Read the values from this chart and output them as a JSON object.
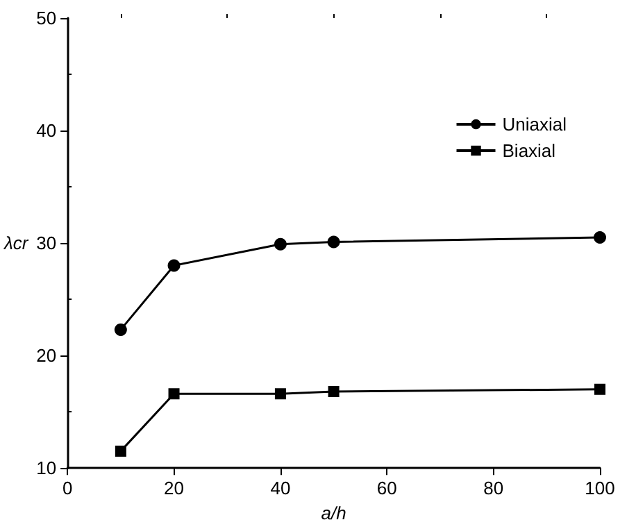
{
  "chart_data": {
    "type": "line",
    "xlabel": "a/h",
    "ylabel": "λcr",
    "x": [
      10,
      20,
      40,
      50,
      100
    ],
    "series": [
      {
        "name": "Uniaxial",
        "color": "#000000",
        "marker": "circle",
        "values": [
          22.3,
          28,
          29.9,
          30.1,
          30.5
        ]
      },
      {
        "name": "Biaxial",
        "color": "#000000",
        "marker": "square",
        "values": [
          11.5,
          16.6,
          16.6,
          16.8,
          17
        ]
      }
    ],
    "xlim": [
      0,
      100
    ],
    "xticks": [
      0,
      20,
      40,
      60,
      80,
      100
    ],
    "ylim": [
      10,
      50
    ],
    "yticks": [
      10,
      20,
      30,
      40,
      50
    ],
    "grid": false,
    "legend": "top right",
    "line_style": "solid"
  }
}
